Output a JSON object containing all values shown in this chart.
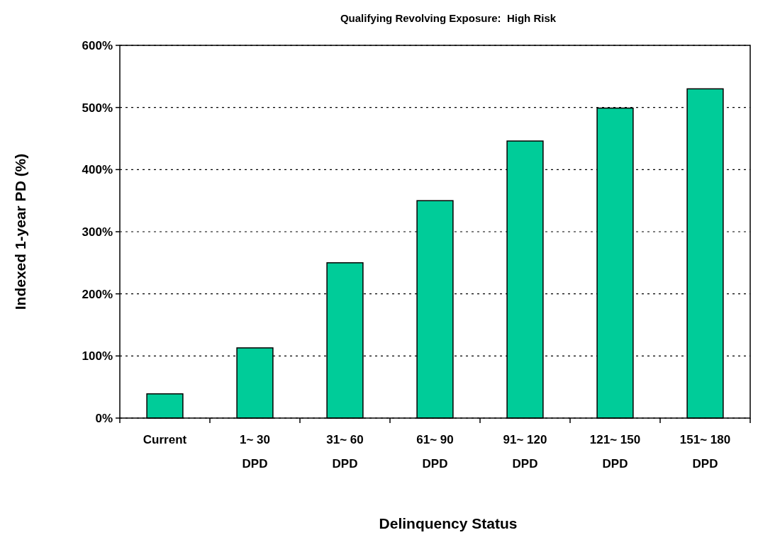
{
  "chart_data": {
    "type": "bar",
    "title": "Qualifying Revolving Exposure:  High Risk",
    "xlabel": "Delinquency Status",
    "ylabel": "Indexed 1-year PD (%)",
    "categories": [
      "Current",
      "1~ 30\nDPD",
      "31~ 60\nDPD",
      "61~ 90\nDPD",
      "91~ 120\nDPD",
      "121~ 150\nDPD",
      "151~ 180\nDPD"
    ],
    "values": [
      39,
      113,
      250,
      350,
      446,
      499,
      530
    ],
    "color": "#00cc99",
    "ylim": [
      0,
      600
    ],
    "yticks": [
      {
        "value": 0,
        "label": "0%"
      },
      {
        "value": 100,
        "label": "100%"
      },
      {
        "value": 200,
        "label": "200%"
      },
      {
        "value": 300,
        "label": "300%"
      },
      {
        "value": 400,
        "label": "400%"
      },
      {
        "value": 500,
        "label": "500%"
      },
      {
        "value": 600,
        "label": "600%"
      }
    ],
    "grid": "y"
  }
}
